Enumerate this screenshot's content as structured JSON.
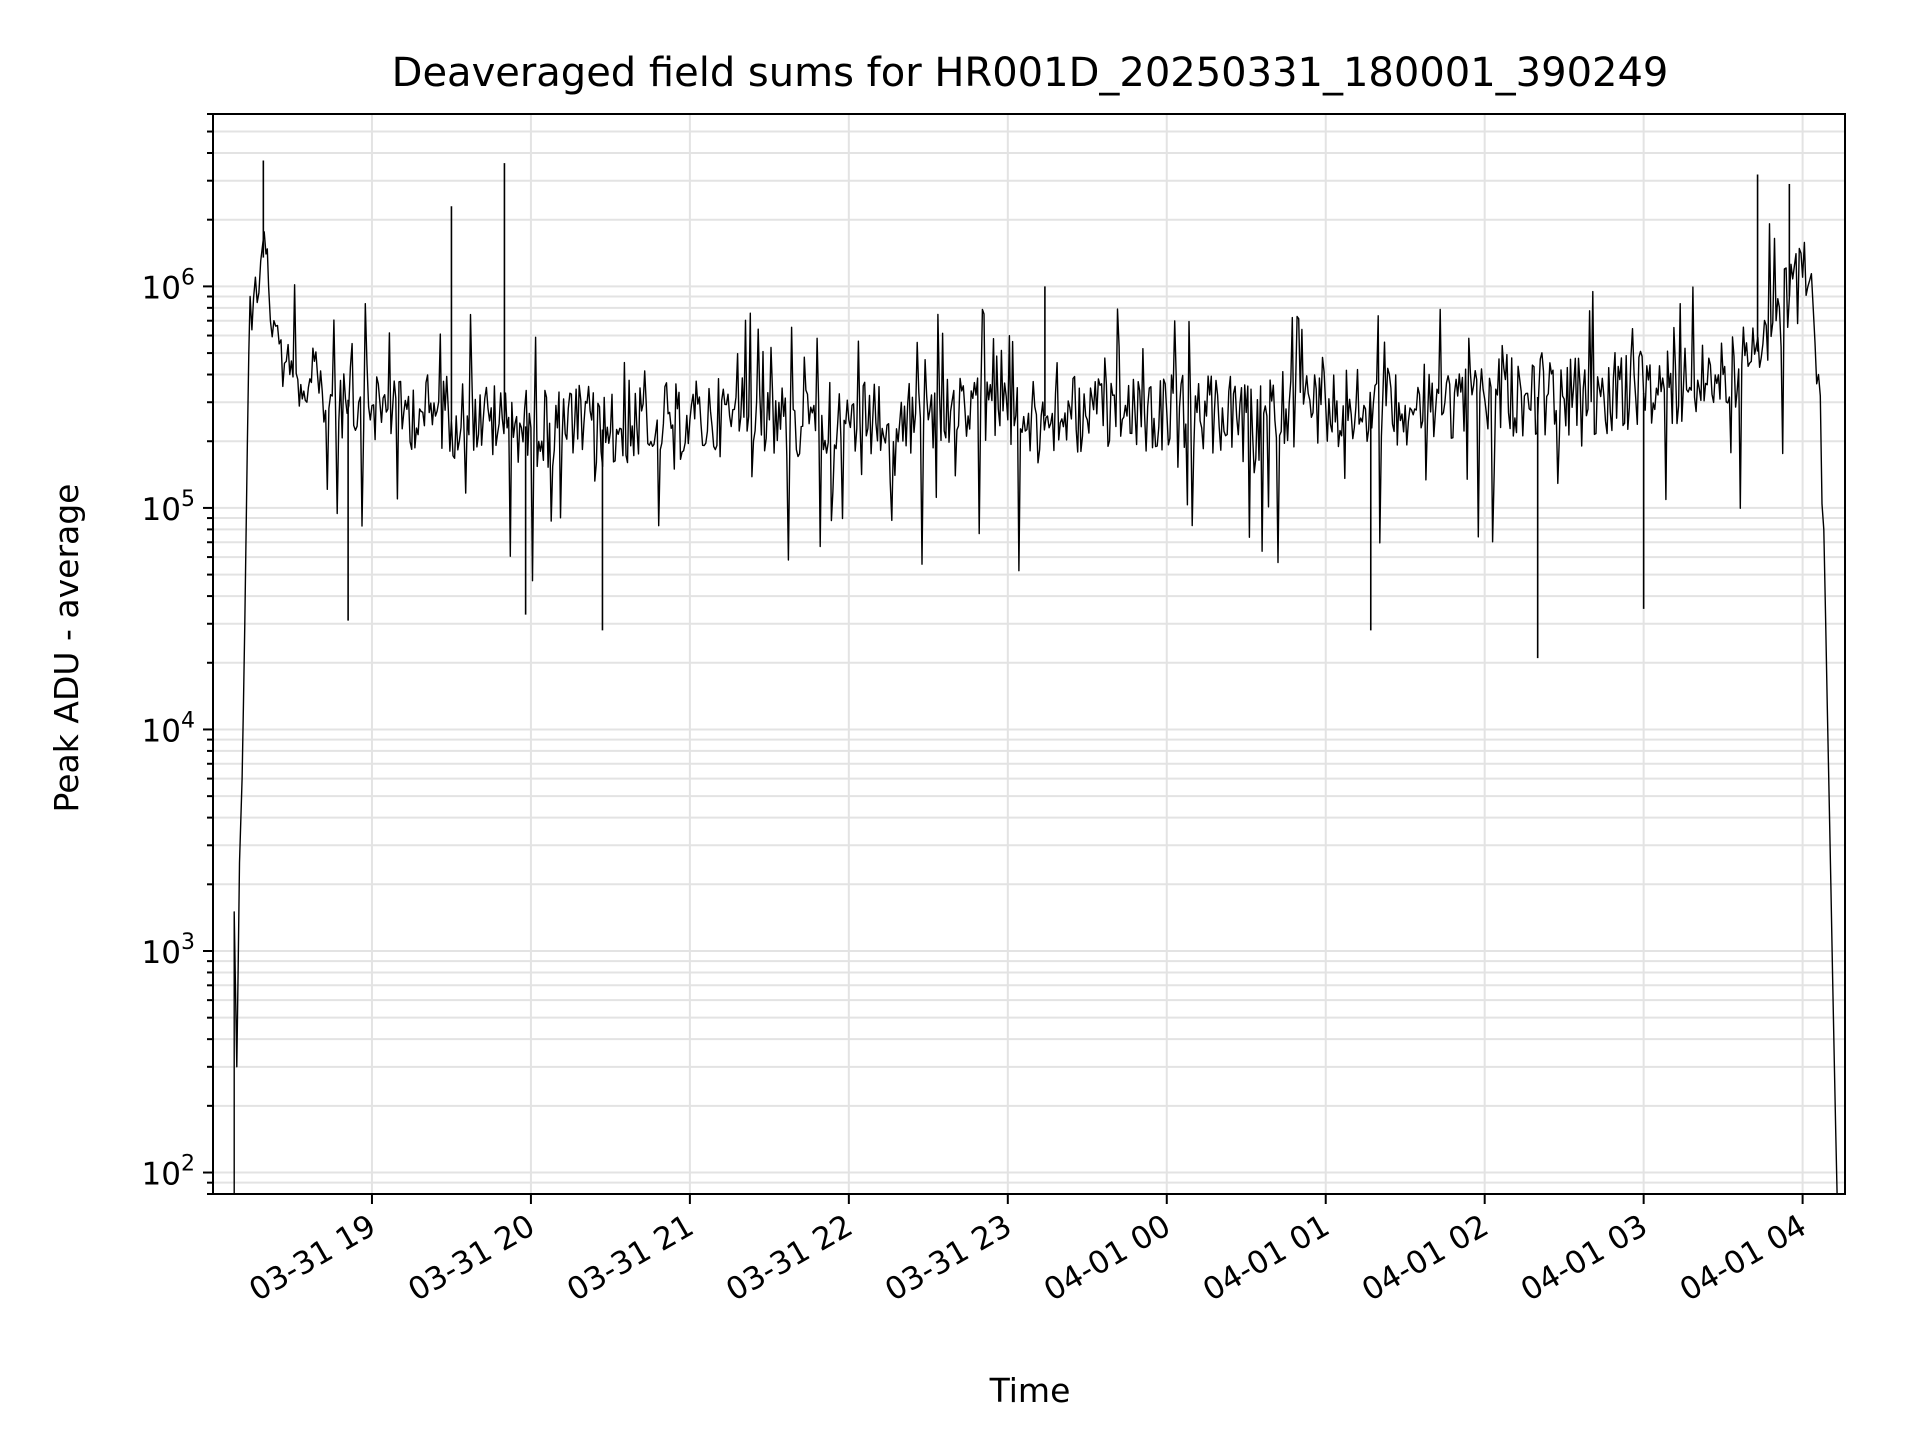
{
  "chart_data": {
    "type": "line",
    "title": "Deaveraged field sums for HR001D_20250331_180001_390249",
    "xlabel": "Time",
    "ylabel": "Peak ADU - average",
    "yscale": "log",
    "xlim": [
      "2025-03-31 18:00",
      "2025-04-01 04:16"
    ],
    "ylim": [
      80,
      6000000
    ],
    "grid": true,
    "line_color": "#000000",
    "grid_color": "#e3e3e3",
    "x_ticks": [
      "03-31 19",
      "03-31 20",
      "03-31 21",
      "03-31 22",
      "03-31 23",
      "04-01 00",
      "04-01 01",
      "04-01 02",
      "04-01 03",
      "04-01 04"
    ],
    "y_ticks": [
      {
        "value": 100,
        "base": "10",
        "exp": "2"
      },
      {
        "value": 1000,
        "base": "10",
        "exp": "3"
      },
      {
        "value": 10000,
        "base": "10",
        "exp": "4"
      },
      {
        "value": 100000,
        "base": "10",
        "exp": "5"
      },
      {
        "value": 1000000,
        "base": "10",
        "exp": "6"
      }
    ],
    "series": [
      {
        "x": [
          "2025-03-31 18:08",
          "2025-03-31 18:08",
          "2025-03-31 18:09",
          "2025-03-31 18:10",
          "2025-03-31 18:11",
          "2025-03-31 18:12",
          "2025-03-31 18:13",
          "2025-03-31 18:14",
          "2025-03-31 18:16",
          "2025-03-31 18:18",
          "2025-03-31 18:20",
          "2025-03-31 18:21",
          "2025-03-31 18:23",
          "2025-03-31 18:25",
          "2025-03-31 18:27",
          "2025-03-31 18:29",
          "2025-03-31 18:32",
          "2025-03-31 18:36",
          "2025-03-31 18:40",
          "2025-03-31 18:45",
          "2025-03-31 18:50",
          "2025-03-31 18:55",
          "2025-03-31 19:00",
          "2025-03-31 19:06",
          "2025-03-31 19:12",
          "2025-03-31 19:18",
          "2025-03-31 19:24",
          "2025-03-31 19:30",
          "2025-03-31 19:36",
          "2025-03-31 19:42",
          "2025-03-31 19:48",
          "2025-03-31 19:54",
          "2025-03-31 20:00",
          "2025-03-31 20:10",
          "2025-03-31 20:20",
          "2025-03-31 20:30",
          "2025-03-31 20:40",
          "2025-03-31 20:50",
          "2025-03-31 21:00",
          "2025-03-31 21:15",
          "2025-03-31 21:30",
          "2025-03-31 21:45",
          "2025-03-31 22:00",
          "2025-03-31 22:15",
          "2025-03-31 22:30",
          "2025-03-31 22:45",
          "2025-03-31 23:00",
          "2025-03-31 23:15",
          "2025-03-31 23:30",
          "2025-03-31 23:45",
          "2025-04-01 00:00",
          "2025-04-01 00:15",
          "2025-04-01 00:30",
          "2025-04-01 00:45",
          "2025-04-01 01:00",
          "2025-04-01 01:15",
          "2025-04-01 01:30",
          "2025-04-01 01:45",
          "2025-04-01 02:00",
          "2025-04-01 02:15",
          "2025-04-01 02:30",
          "2025-04-01 02:45",
          "2025-04-01 03:00",
          "2025-04-01 03:15",
          "2025-04-01 03:30",
          "2025-04-01 03:40",
          "2025-04-01 03:45",
          "2025-04-01 03:50",
          "2025-04-01 03:55",
          "2025-04-01 04:00",
          "2025-04-01 04:02",
          "2025-04-01 04:04",
          "2025-04-01 04:06",
          "2025-04-01 04:08",
          "2025-04-01 04:10",
          "2025-04-01 04:12",
          "2025-04-01 04:13"
        ],
        "y": [
          80,
          1500,
          300,
          2500,
          6000,
          30000,
          200000,
          900000,
          1100000,
          1300000,
          1400000,
          1000000,
          700000,
          550000,
          450000,
          400000,
          380000,
          350000,
          330000,
          320000,
          310000,
          300000,
          290000,
          280000,
          270000,
          280000,
          260000,
          250000,
          260000,
          250000,
          240000,
          240000,
          230000,
          230000,
          240000,
          220000,
          230000,
          240000,
          250000,
          260000,
          250000,
          240000,
          250000,
          240000,
          250000,
          260000,
          250000,
          260000,
          250000,
          260000,
          270000,
          260000,
          270000,
          280000,
          290000,
          280000,
          290000,
          300000,
          310000,
          320000,
          310000,
          320000,
          330000,
          350000,
          400000,
          450000,
          550000,
          700000,
          900000,
          1100000,
          1000000,
          800000,
          400000,
          80000,
          5000,
          300,
          80
        ],
        "spikes_up": [
          {
            "x": "2025-03-31 18:19",
            "y": 3700000
          },
          {
            "x": "2025-03-31 19:30",
            "y": 2300000
          },
          {
            "x": "2025-03-31 19:50",
            "y": 3600000
          },
          {
            "x": "2025-03-31 23:14",
            "y": 1000000
          },
          {
            "x": "2025-04-01 03:43",
            "y": 3200000
          },
          {
            "x": "2025-04-01 03:55",
            "y": 2900000
          }
        ],
        "spikes_down": [
          {
            "x": "2025-03-31 18:51",
            "y": 31000
          },
          {
            "x": "2025-03-31 19:58",
            "y": 33000
          },
          {
            "x": "2025-03-31 20:27",
            "y": 28000
          },
          {
            "x": "2025-04-01 01:17",
            "y": 28000
          },
          {
            "x": "2025-04-01 02:20",
            "y": 21000
          },
          {
            "x": "2025-04-01 03:00",
            "y": 35000
          }
        ]
      }
    ]
  }
}
